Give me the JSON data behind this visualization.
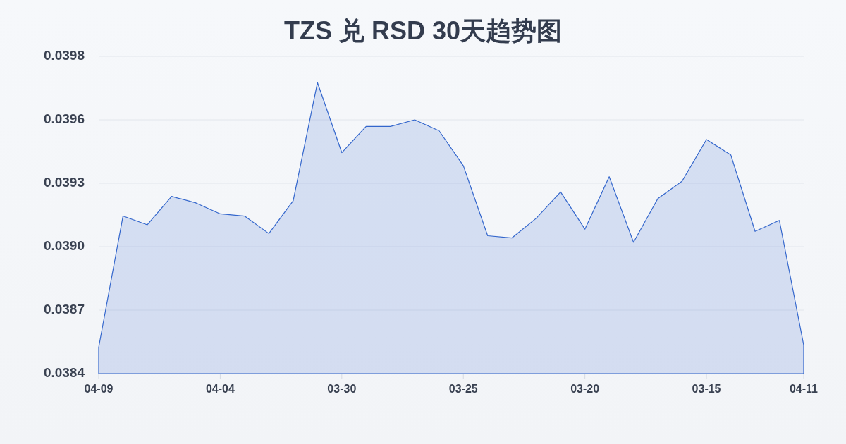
{
  "chart_data": {
    "type": "area",
    "title": "TZS 兑 RSD 30天趋势图",
    "categories": [
      "04-09",
      null,
      null,
      null,
      null,
      "04-04",
      null,
      null,
      null,
      null,
      "03-30",
      null,
      null,
      null,
      null,
      "03-25",
      null,
      null,
      null,
      null,
      "03-20",
      null,
      null,
      null,
      null,
      "03-15",
      null,
      null,
      null,
      "04-11"
    ],
    "values": [
      0.03852,
      0.03912,
      0.03908,
      0.03921,
      0.03918,
      0.03913,
      0.03912,
      0.03904,
      0.03919,
      0.03973,
      0.03941,
      0.03953,
      0.03953,
      0.03956,
      0.03951,
      0.03935,
      0.03903,
      0.03902,
      0.03911,
      0.03923,
      0.03906,
      0.0393,
      0.039,
      0.0392,
      0.03928,
      0.03947,
      0.0394,
      0.03905,
      0.0391,
      0.03853
    ],
    "color": "#3366cc",
    "ylim": [
      0.0384,
      0.03985
    ],
    "yticks": [
      {
        "value": 0.0384,
        "label": "0.0384"
      },
      {
        "value": 0.03869,
        "label": "0.0387"
      },
      {
        "value": 0.03898,
        "label": "0.0390"
      },
      {
        "value": 0.03927,
        "label": "0.0393"
      },
      {
        "value": 0.03956,
        "label": "0.0396"
      },
      {
        "value": 0.03985,
        "label": "0.0398"
      }
    ],
    "grid": "y"
  }
}
